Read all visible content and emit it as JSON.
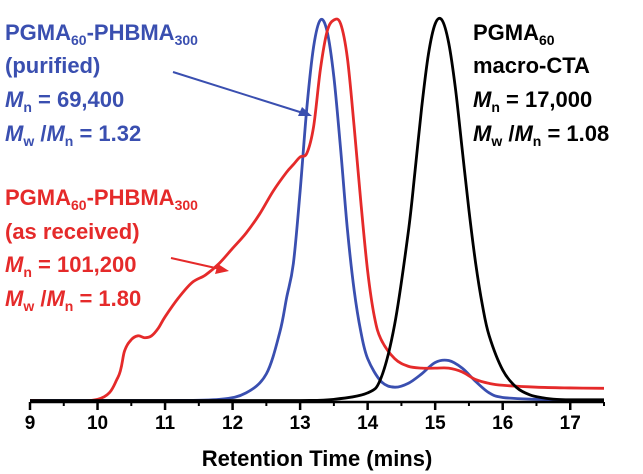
{
  "chart_data": {
    "type": "line",
    "xlabel": "Retention Time (mins)",
    "ylabel": "",
    "xlim": [
      9,
      17.5
    ],
    "ylim": [
      0,
      1.0
    ],
    "x_ticks": [
      "9",
      "10",
      "11",
      "12",
      "13",
      "14",
      "15",
      "16",
      "17"
    ],
    "grid": false,
    "series": [
      {
        "key": "purified",
        "color": "#3a4fb0",
        "x": [
          9.0,
          10.0,
          11.0,
          11.8,
          12.2,
          12.5,
          12.7,
          12.8,
          12.9,
          13.0,
          13.1,
          13.2,
          13.3,
          13.4,
          13.5,
          13.6,
          13.7,
          13.8,
          13.9,
          14.0,
          14.2,
          14.4,
          14.6,
          14.8,
          15.0,
          15.2,
          15.4,
          15.6,
          15.8,
          16.0,
          16.5,
          17.0,
          17.5
        ],
        "y": [
          0.0,
          0.0,
          0.0,
          0.003,
          0.02,
          0.07,
          0.18,
          0.27,
          0.36,
          0.55,
          0.77,
          0.93,
          1.0,
          0.97,
          0.85,
          0.66,
          0.45,
          0.29,
          0.18,
          0.11,
          0.05,
          0.035,
          0.045,
          0.07,
          0.1,
          0.105,
          0.085,
          0.05,
          0.02,
          0.008,
          0.003,
          0.001,
          0.0
        ]
      },
      {
        "key": "as_received",
        "color": "#e52a2a",
        "x": [
          9.0,
          10.0,
          10.3,
          10.4,
          10.5,
          10.6,
          10.7,
          10.8,
          10.9,
          11.0,
          11.2,
          11.4,
          11.6,
          11.8,
          12.0,
          12.2,
          12.4,
          12.6,
          12.8,
          12.9,
          13.0,
          13.1,
          13.2,
          13.3,
          13.4,
          13.5,
          13.6,
          13.7,
          13.8,
          13.9,
          14.0,
          14.1,
          14.2,
          14.4,
          14.6,
          14.8,
          15.0,
          15.2,
          15.4,
          15.6,
          15.8,
          16.0,
          16.5,
          17.0,
          17.5
        ],
        "y": [
          0.0,
          0.003,
          0.06,
          0.13,
          0.16,
          0.17,
          0.165,
          0.17,
          0.19,
          0.22,
          0.27,
          0.31,
          0.33,
          0.36,
          0.4,
          0.44,
          0.49,
          0.55,
          0.6,
          0.62,
          0.64,
          0.65,
          0.72,
          0.87,
          0.97,
          1.0,
          0.99,
          0.9,
          0.72,
          0.52,
          0.34,
          0.22,
          0.16,
          0.11,
          0.09,
          0.085,
          0.085,
          0.085,
          0.075,
          0.055,
          0.045,
          0.04,
          0.035,
          0.033,
          0.032
        ]
      },
      {
        "key": "macro_cta",
        "color": "#000000",
        "x": [
          9.0,
          12.0,
          13.0,
          13.5,
          14.0,
          14.2,
          14.4,
          14.6,
          14.7,
          14.8,
          14.9,
          15.0,
          15.1,
          15.2,
          15.3,
          15.4,
          15.5,
          15.6,
          15.7,
          15.8,
          16.0,
          16.2,
          16.4,
          16.6,
          16.8,
          17.0,
          17.5
        ],
        "y": [
          0.0,
          0.0,
          0.0,
          0.003,
          0.02,
          0.06,
          0.2,
          0.44,
          0.6,
          0.77,
          0.91,
          0.99,
          1.0,
          0.94,
          0.82,
          0.66,
          0.5,
          0.36,
          0.25,
          0.17,
          0.08,
          0.035,
          0.015,
          0.007,
          0.003,
          0.002,
          0.002
        ]
      }
    ],
    "annotations": {
      "purified": {
        "color": "#3a4fb0",
        "line1_main": "PGMA",
        "line1_sub1": "60",
        "line1_mid": "-PHBMA",
        "line1_sub2": "300",
        "line2": "(purified)",
        "mn_italic": "M",
        "mn_sub": "n",
        "mn_value": " = 69,400",
        "mw_italic1": "M",
        "mw_sub1": "w",
        "mw_slash": " /",
        "mw_italic2": "M",
        "mw_sub2": "n",
        "mw_value": " = 1.32"
      },
      "as_received": {
        "color": "#e52a2a",
        "line1_main": "PGMA",
        "line1_sub1": "60",
        "line1_mid": "-PHBMA",
        "line1_sub2": "300",
        "line2": "(as received)",
        "mn_italic": "M",
        "mn_sub": "n",
        "mn_value": " = 101,200",
        "mw_italic1": "M",
        "mw_sub1": "w",
        "mw_slash": " /",
        "mw_italic2": "M",
        "mw_sub2": "n",
        "mw_value": " = 1.80"
      },
      "macro_cta": {
        "color": "#000000",
        "line1_main": "PGMA",
        "line1_sub1": "60",
        "line2": "macro-CTA",
        "mn_italic": "M",
        "mn_sub": "n",
        "mn_value": " = 17,000",
        "mw_italic1": "M",
        "mw_sub1": "w",
        "mw_slash": " /",
        "mw_italic2": "M",
        "mw_sub2": "n",
        "mw_value": " = 1.08"
      }
    }
  }
}
